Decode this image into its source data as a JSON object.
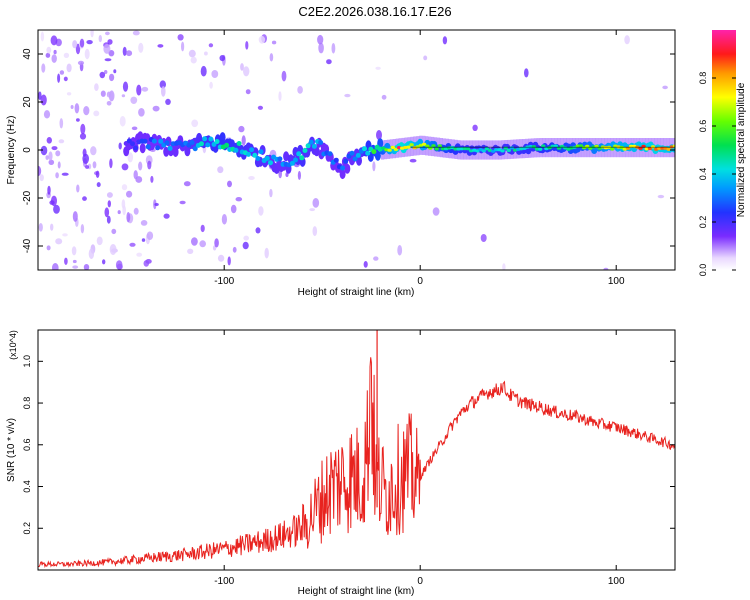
{
  "chart_data": [
    {
      "type": "heatmap",
      "title": "C2E2.2026.038.16.17.E26",
      "xlabel": "Height of straight line (km)",
      "ylabel": "Frequency (Hz)",
      "xlim": [
        -195,
        130
      ],
      "ylim": [
        -50,
        50
      ],
      "x_ticks": [
        -100,
        0,
        100
      ],
      "y_ticks": [
        -40,
        -20,
        0,
        20,
        40
      ],
      "colorbar": {
        "label": "Normalized spectral amplitude",
        "range": [
          0,
          1
        ],
        "ticks": [
          "0.0",
          "0.2",
          "0.4",
          "0.6",
          "0.8"
        ],
        "tick_values": [
          0.0,
          0.2,
          0.4,
          0.6,
          0.8
        ]
      },
      "ridge": {
        "description": "dominant frequency track vs height",
        "x": [
          -150,
          -140,
          -130,
          -120,
          -110,
          -100,
          -90,
          -80,
          -70,
          -60,
          -55,
          -50,
          -45,
          -40,
          -35,
          -30,
          -25,
          -20,
          -10,
          0,
          10,
          20,
          40,
          60,
          80,
          100,
          120,
          130
        ],
        "y": [
          2,
          3,
          2,
          1,
          3,
          3,
          0,
          -3,
          -6,
          -2,
          3,
          1,
          -4,
          -8,
          -3,
          -1,
          0,
          0,
          1,
          2,
          1,
          0,
          0,
          1,
          1,
          1,
          1,
          1
        ],
        "amplitude": [
          0.2,
          0.3,
          0.35,
          0.35,
          0.45,
          0.5,
          0.45,
          0.4,
          0.35,
          0.45,
          0.4,
          0.35,
          0.3,
          0.3,
          0.35,
          0.4,
          0.55,
          0.6,
          0.95,
          0.8,
          0.6,
          0.5,
          0.45,
          0.5,
          0.6,
          0.8,
          0.9,
          0.85
        ]
      }
    },
    {
      "type": "line",
      "xlabel": "Height of straight line (km)",
      "ylabel": "SNR (10 * v/v)",
      "y_multiplier": "(x10^4)",
      "xlim": [
        -195,
        130
      ],
      "ylim": [
        0,
        11500
      ],
      "x_ticks": [
        -100,
        0,
        100
      ],
      "y_ticks": [
        2000,
        4000,
        6000,
        8000,
        10000
      ],
      "y_tick_labels": [
        "0.2",
        "0.4",
        "0.6",
        "0.8",
        "1.0"
      ],
      "series": [
        {
          "name": "SNR",
          "color": "#e8231f",
          "x": [
            -195,
            -180,
            -160,
            -140,
            -120,
            -100,
            -90,
            -80,
            -70,
            -60,
            -55,
            -50,
            -45,
            -40,
            -35,
            -30,
            -27,
            -25,
            -23,
            -20,
            -17,
            -15,
            -10,
            -5,
            0,
            5,
            10,
            15,
            20,
            25,
            30,
            35,
            40,
            42,
            45,
            50,
            55,
            60,
            70,
            80,
            90,
            100,
            110,
            120,
            130
          ],
          "y": [
            300,
            300,
            400,
            600,
            800,
            1100,
            1300,
            1500,
            1800,
            2200,
            3000,
            3800,
            4500,
            4800,
            5000,
            4900,
            6500,
            11500,
            5000,
            4600,
            4000,
            4500,
            5000,
            5300,
            4500,
            5300,
            6000,
            6800,
            7500,
            8000,
            8300,
            8600,
            8700,
            8900,
            8500,
            8200,
            8000,
            7900,
            7600,
            7400,
            7100,
            6900,
            6600,
            6300,
            6000
          ],
          "envelope": [
            100,
            200,
            300,
            500,
            700,
            900,
            1100,
            1300,
            1700,
            2100,
            2900,
            3700,
            4400,
            4600,
            4900,
            4800,
            6200,
            11000,
            4900,
            4300,
            3800,
            4400,
            4800,
            5100,
            4300,
            5100,
            5800,
            6600,
            7300,
            7900,
            8100,
            8300,
            8500,
            8700,
            8300,
            8000,
            7900,
            7700,
            7500,
            7300,
            7000,
            6800,
            6500,
            6200,
            5900
          ]
        }
      ]
    }
  ]
}
